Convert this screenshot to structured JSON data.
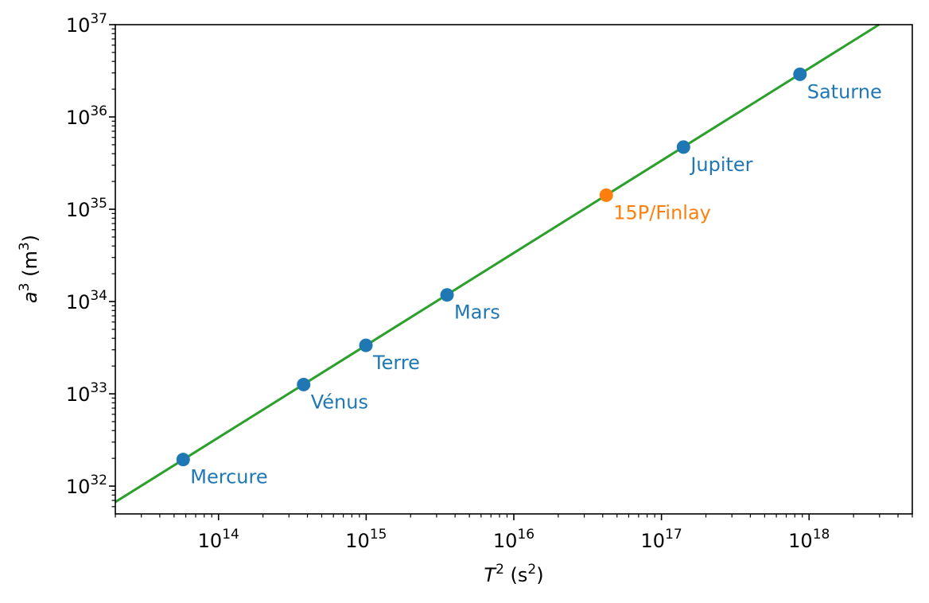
{
  "chart_data": {
    "type": "scatter",
    "title": "",
    "xlabel": {
      "var": "T",
      "sup": "2",
      "unit_open": " (s",
      "unit_sup": "2",
      "unit_close": ")"
    },
    "ylabel": {
      "var": "a",
      "sup": "3",
      "unit_open": " (m",
      "unit_sup": "3",
      "unit_close": ")"
    },
    "x_scale": "log",
    "y_scale": "log",
    "xlim": [
      20000000000000.0,
      5e+18
    ],
    "ylim": [
      5e+31,
      1e+37
    ],
    "x_ticks": [
      {
        "base": "10",
        "exp": "14",
        "value": 100000000000000.0
      },
      {
        "base": "10",
        "exp": "15",
        "value": 1000000000000000.0
      },
      {
        "base": "10",
        "exp": "16",
        "value": 1e+16
      },
      {
        "base": "10",
        "exp": "17",
        "value": 1e+17
      },
      {
        "base": "10",
        "exp": "18",
        "value": 1e+18
      }
    ],
    "y_ticks": [
      {
        "base": "10",
        "exp": "32",
        "value": 1e+32
      },
      {
        "base": "10",
        "exp": "33",
        "value": 1e+33
      },
      {
        "base": "10",
        "exp": "34",
        "value": 1e+34
      },
      {
        "base": "10",
        "exp": "35",
        "value": 1e+35
      },
      {
        "base": "10",
        "exp": "36",
        "value": 1e+36
      },
      {
        "base": "10",
        "exp": "37",
        "value": 1e+37
      }
    ],
    "grid": false,
    "fit_line": {
      "color": "#2ca02c",
      "slope": 3.362e+18
    },
    "series": [
      {
        "color": "#1f77b4",
        "points": [
          {
            "label": "Mercure",
            "x": 57600000000000.0,
            "y": 1.94e+32
          },
          {
            "label": "Vénus",
            "x": 377000000000000.0,
            "y": 1.26e+33
          },
          {
            "label": "Terre",
            "x": 996000000000000.0,
            "y": 3.35e+33
          },
          {
            "label": "Mars",
            "x": 3530000000000000.0,
            "y": 1.18e+34
          },
          {
            "label": "Jupiter",
            "x": 1.41e+17,
            "y": 4.72e+35
          },
          {
            "label": "Saturne",
            "x": 8.67e+17,
            "y": 2.9e+36
          }
        ]
      },
      {
        "color": "#ff7f0e",
        "points": [
          {
            "label": "15P/Finlay",
            "x": 4.23e+16,
            "y": 1.42e+35
          }
        ]
      }
    ]
  }
}
